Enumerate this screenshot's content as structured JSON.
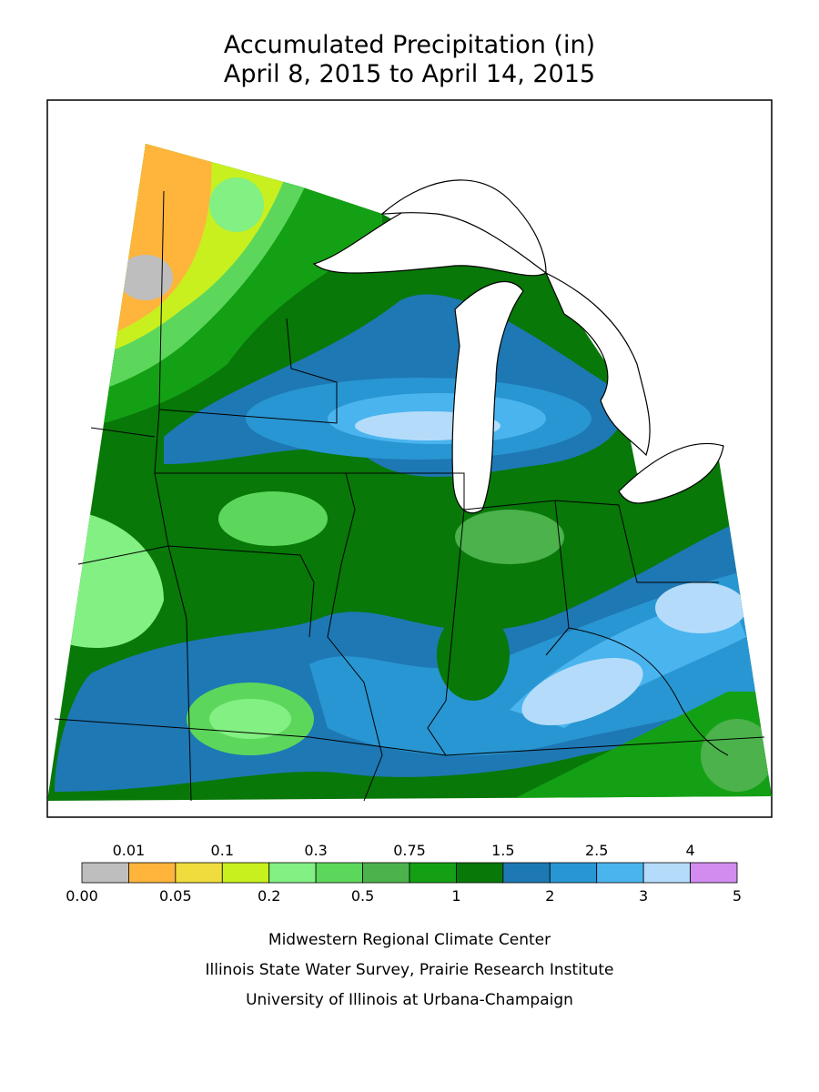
{
  "title": [
    "Accumulated Precipitation (in)",
    "April 8, 2015 to April 14, 2015"
  ],
  "legend": {
    "breaks": [
      "0.00",
      "0.01",
      "0.05",
      "0.1",
      "0.2",
      "0.3",
      "0.5",
      "0.75",
      "1",
      "1.5",
      "2",
      "2.5",
      "3",
      "4",
      "5"
    ],
    "colors": [
      "#bebebe",
      "#ffb43c",
      "#f0dc3c",
      "#c8f01e",
      "#82f082",
      "#5cd75c",
      "#4cb24c",
      "#14a014",
      "#087808",
      "#1e78b4",
      "#2896d2",
      "#4ab4ee",
      "#b4dcfa",
      "#d28cf0"
    ]
  },
  "credits": [
    "Midwestern Regional Climate Center",
    "Illinois State Water Survey, Prairie Research Institute",
    "University of Illinois at Urbana-Champaign"
  ]
}
